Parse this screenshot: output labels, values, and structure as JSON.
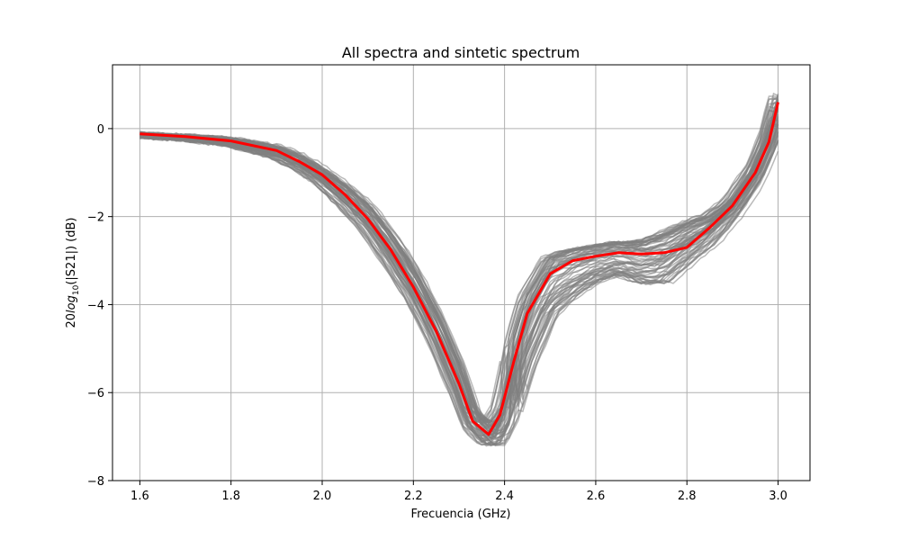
{
  "chart_data": {
    "type": "line",
    "title": "All spectra and sintetic spectrum",
    "xlabel": "Frecuencia (GHz)",
    "ylabel_parts": {
      "prefix": "20",
      "log": "log",
      "sub": "10",
      "suffix": "(|S21|) (dB)"
    },
    "xlim": [
      1.54,
      3.07
    ],
    "ylim": [
      -8,
      1.45
    ],
    "xticks": [
      1.6,
      1.8,
      2.0,
      2.2,
      2.4,
      2.6,
      2.8,
      3.0
    ],
    "xtick_labels": [
      "1.6",
      "1.8",
      "2.0",
      "2.2",
      "2.4",
      "2.6",
      "2.8",
      "3.0"
    ],
    "yticks": [
      0,
      -2,
      -4,
      -6,
      -8
    ],
    "ytick_labels": [
      "0",
      "−2",
      "−4",
      "−6",
      "−8"
    ],
    "grid": true,
    "series": [
      {
        "color": "#ff0000",
        "x": [
          1.6,
          1.7,
          1.8,
          1.9,
          1.95,
          2.0,
          2.05,
          2.1,
          2.15,
          2.2,
          2.25,
          2.3,
          2.33,
          2.365,
          2.39,
          2.42,
          2.45,
          2.5,
          2.55,
          2.6,
          2.65,
          2.7,
          2.75,
          2.8,
          2.85,
          2.9,
          2.95,
          2.98,
          3.0
        ],
        "y": [
          -0.12,
          -0.18,
          -0.28,
          -0.5,
          -0.75,
          -1.05,
          -1.5,
          -2.05,
          -2.75,
          -3.6,
          -4.6,
          -5.8,
          -6.65,
          -6.95,
          -6.5,
          -5.3,
          -4.2,
          -3.3,
          -3.0,
          -2.9,
          -2.82,
          -2.85,
          -2.82,
          -2.7,
          -2.25,
          -1.75,
          -1.0,
          -0.3,
          0.6
        ]
      }
    ],
    "spectra_envelope": {
      "color": "#808080",
      "count": 70,
      "x": [
        1.6,
        1.7,
        1.8,
        1.9,
        1.95,
        2.0,
        2.05,
        2.1,
        2.15,
        2.2,
        2.25,
        2.3,
        2.33,
        2.365,
        2.39,
        2.42,
        2.45,
        2.5,
        2.55,
        2.6,
        2.65,
        2.7,
        2.75,
        2.8,
        2.85,
        2.9,
        2.95,
        2.98,
        3.0
      ],
      "y_low": [
        -0.25,
        -0.32,
        -0.45,
        -0.75,
        -1.0,
        -1.35,
        -1.9,
        -2.5,
        -3.3,
        -4.1,
        -5.1,
        -6.3,
        -7.0,
        -7.4,
        -7.5,
        -7.2,
        -6.2,
        -4.8,
        -4.2,
        -3.8,
        -3.6,
        -3.9,
        -3.95,
        -3.4,
        -2.9,
        -2.2,
        -1.4,
        -0.7,
        -0.2
      ],
      "y_high": [
        -0.05,
        -0.1,
        -0.15,
        -0.3,
        -0.5,
        -0.8,
        -1.1,
        -1.5,
        -2.1,
        -2.9,
        -3.9,
        -5.1,
        -6.2,
        -6.5,
        -6.0,
        -4.2,
        -3.1,
        -2.4,
        -2.35,
        -2.35,
        -2.3,
        -2.2,
        -1.95,
        -1.8,
        -1.7,
        -1.4,
        -0.65,
        0.1,
        1.05
      ]
    }
  }
}
